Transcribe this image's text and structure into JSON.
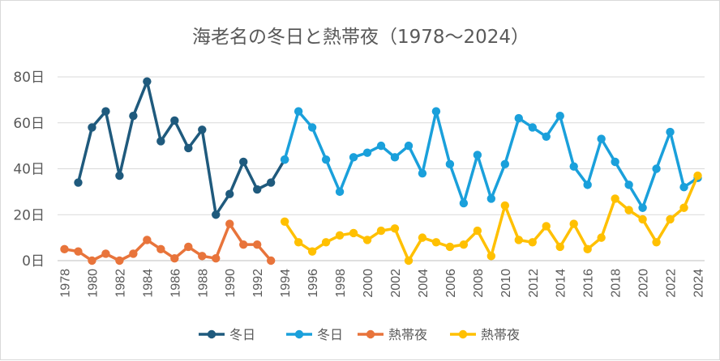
{
  "chart_data": {
    "type": "line",
    "title": "海老名の冬日と熱帯夜（1978～2024）",
    "ylim": [
      0,
      80
    ],
    "y_ticks": [
      0,
      20,
      40,
      60,
      80
    ],
    "y_tick_labels": [
      "0日",
      "20日",
      "40日",
      "60日",
      "80日"
    ],
    "x_ticks": [
      1978,
      1980,
      1982,
      1984,
      1986,
      1988,
      1990,
      1992,
      1994,
      1996,
      1998,
      2000,
      2002,
      2004,
      2006,
      2008,
      2010,
      2012,
      2014,
      2016,
      2018,
      2020,
      2022,
      2024
    ],
    "x_tick_labels": [
      "1978",
      "1980",
      "1982",
      "1984",
      "1986",
      "1988",
      "1990",
      "1992",
      "1994",
      "1996",
      "1998",
      "2000",
      "2002",
      "2004",
      "2006",
      "2008",
      "2010",
      "2012",
      "2014",
      "2016",
      "2018",
      "2020",
      "2022",
      "2024"
    ],
    "legend_position": "bottom",
    "grid": true,
    "series": [
      {
        "name": "冬日",
        "color": "#1f5a7d",
        "x": [
          1979,
          1980,
          1981,
          1982,
          1983,
          1984,
          1985,
          1986,
          1987,
          1988,
          1989,
          1990,
          1991,
          1992,
          1993,
          1994
        ],
        "values": [
          34,
          58,
          65,
          37,
          63,
          78,
          52,
          61,
          49,
          57,
          20,
          29,
          43,
          31,
          34,
          44
        ]
      },
      {
        "name": "冬日",
        "color": "#1aa0db",
        "x": [
          1994,
          1995,
          1996,
          1997,
          1998,
          1999,
          2000,
          2001,
          2002,
          2003,
          2004,
          2005,
          2006,
          2007,
          2008,
          2009,
          2010,
          2011,
          2012,
          2013,
          2014,
          2015,
          2016,
          2017,
          2018,
          2019,
          2020,
          2021,
          2022,
          2023,
          2024
        ],
        "values": [
          44,
          65,
          58,
          44,
          30,
          45,
          47,
          50,
          45,
          50,
          38,
          65,
          42,
          25,
          46,
          27,
          42,
          62,
          58,
          54,
          63,
          41,
          33,
          53,
          43,
          33,
          23,
          40,
          56,
          32,
          36
        ]
      },
      {
        "name": "熱帯夜",
        "color": "#e8743b",
        "x": [
          1978,
          1979,
          1980,
          1981,
          1982,
          1983,
          1984,
          1985,
          1986,
          1987,
          1988,
          1989,
          1990,
          1991,
          1992,
          1993
        ],
        "values": [
          5,
          4,
          0,
          3,
          0,
          3,
          9,
          5,
          1,
          6,
          2,
          1,
          16,
          7,
          7,
          0
        ]
      },
      {
        "name": "熱帯夜",
        "color": "#ffc000",
        "x": [
          1994,
          1995,
          1996,
          1997,
          1998,
          1999,
          2000,
          2001,
          2002,
          2003,
          2004,
          2005,
          2006,
          2007,
          2008,
          2009,
          2010,
          2011,
          2012,
          2013,
          2014,
          2015,
          2016,
          2017,
          2018,
          2019,
          2020,
          2021,
          2022,
          2023,
          2024
        ],
        "values": [
          17,
          8,
          4,
          8,
          11,
          12,
          9,
          13,
          14,
          0,
          10,
          8,
          6,
          7,
          13,
          2,
          24,
          9,
          8,
          15,
          6,
          16,
          5,
          10,
          27,
          22,
          18,
          8,
          18,
          23,
          37
        ]
      }
    ]
  }
}
